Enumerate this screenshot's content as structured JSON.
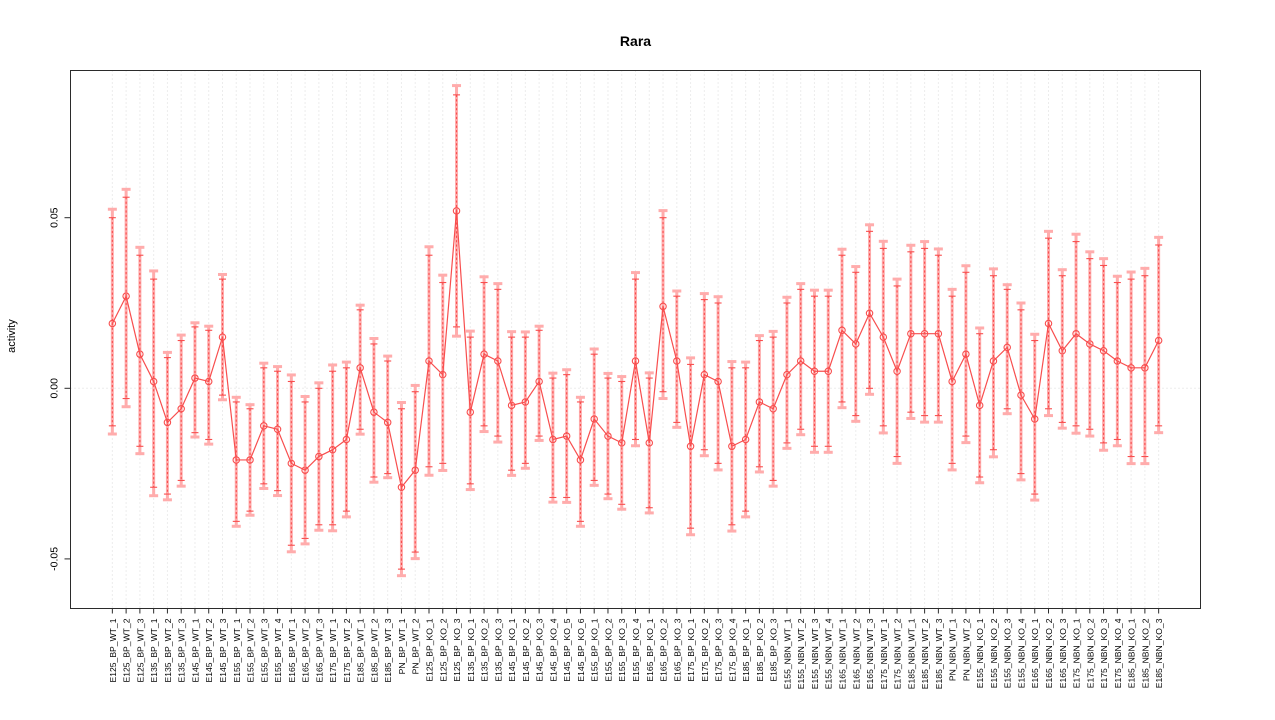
{
  "figure": {
    "title": "Rara",
    "ylabel": "activity",
    "xlabel": ""
  },
  "chart_data": {
    "type": "scatter",
    "subtype": "points-with-error-bars-connected-by-line",
    "title": "Rara",
    "xlabel": "",
    "ylabel": "activity",
    "ylim": [
      -0.0645,
      0.0931
    ],
    "y_ticks": [
      0.05,
      0,
      -0.05
    ],
    "grid": "dotted vertical line at every category; dotted horizontal line at y=0",
    "legend": "none",
    "point_color": "#f84e4e",
    "ci_band_color": "#ffacac",
    "grid_color": "#dadada",
    "axis_color": "#2b2b2b",
    "categories": [
      "E125_BP_WT_1",
      "E125_BP_WT_2",
      "E125_BP_WT_3",
      "E135_BP_WT_1",
      "E135_BP_WT_2",
      "E135_BP_WT_3",
      "E145_BP_WT_1",
      "E145_BP_WT_2",
      "E145_BP_WT_3",
      "E155_BP_WT_1",
      "E155_BP_WT_2",
      "E155_BP_WT_3",
      "E155_BP_WT_4",
      "E165_BP_WT_1",
      "E165_BP_WT_2",
      "E165_BP_WT_3",
      "E175_BP_WT_1",
      "E175_BP_WT_2",
      "E185_BP_WT_1",
      "E185_BP_WT_2",
      "E185_BP_WT_3",
      "PN_BP_WT_1",
      "PN_BP_WT_2",
      "E125_BP_KO_1",
      "E125_BP_KO_2",
      "E125_BP_KO_3",
      "E135_BP_KO_1",
      "E135_BP_KO_2",
      "E135_BP_KO_3",
      "E145_BP_KO_1",
      "E145_BP_KO_2",
      "E145_BP_KO_3",
      "E145_BP_KO_4",
      "E145_BP_KO_5",
      "E145_BP_KO_6",
      "E155_BP_KO_1",
      "E155_BP_KO_2",
      "E155_BP_KO_3",
      "E155_BP_KO_4",
      "E165_BP_KO_1",
      "E165_BP_KO_2",
      "E165_BP_KO_3",
      "E175_BP_KO_1",
      "E175_BP_KO_2",
      "E175_BP_KO_3",
      "E175_BP_KO_4",
      "E185_BP_KO_1",
      "E185_BP_KO_2",
      "E185_BP_KO_3",
      "E155_NBN_WT_1",
      "E155_NBN_WT_2",
      "E155_NBN_WT_3",
      "E155_NBN_WT_4",
      "E165_NBN_WT_1",
      "E165_NBN_WT_2",
      "E165_NBN_WT_3",
      "E175_NBN_WT_1",
      "E175_NBN_WT_2",
      "E185_NBN_WT_1",
      "E185_NBN_WT_2",
      "E185_NBN_WT_3",
      "PN_NBN_WT_1",
      "PN_NBN_WT_2",
      "E155_NBN_KO_1",
      "E155_NBN_KO_2",
      "E155_NBN_KO_3",
      "E155_NBN_KO_4",
      "E165_NBN_KO_1",
      "E165_NBN_KO_2",
      "E165_NBN_KO_3",
      "E175_NBN_KO_1",
      "E175_NBN_KO_2",
      "E175_NBN_KO_3",
      "E175_NBN_KO_4",
      "E185_NBN_KO_1",
      "E185_NBN_KO_2",
      "E185_NBN_KO_3"
    ],
    "values": [
      0.019,
      0.027,
      0.01,
      0.002,
      -0.01,
      -0.006,
      0.003,
      0.002,
      0.015,
      -0.021,
      -0.021,
      -0.011,
      -0.012,
      -0.022,
      -0.024,
      -0.02,
      -0.018,
      -0.015,
      0.006,
      -0.007,
      -0.01,
      -0.029,
      -0.024,
      0.008,
      0.004,
      0.052,
      -0.007,
      0.01,
      0.008,
      -0.005,
      -0.004,
      0.002,
      -0.015,
      -0.014,
      -0.021,
      -0.009,
      -0.014,
      -0.016,
      0.008,
      -0.016,
      0.024,
      0.008,
      -0.017,
      0.004,
      0.002,
      -0.017,
      -0.015,
      -0.004,
      -0.006,
      0.004,
      0.008,
      0.005,
      0.005,
      0.017,
      0.013,
      0.022,
      0.015,
      0.005,
      0.016,
      0.016,
      0.016,
      0.002,
      0.01,
      -0.005,
      0.008,
      0.012,
      -0.002,
      -0.009,
      0.019,
      0.011,
      0.016,
      0.013,
      0.011,
      0.008,
      0.006,
      0.006,
      0.014
    ],
    "ci_low": [
      -0.011,
      -0.003,
      -0.017,
      -0.029,
      -0.031,
      -0.027,
      -0.013,
      -0.015,
      -0.002,
      -0.039,
      -0.036,
      -0.028,
      -0.03,
      -0.046,
      -0.044,
      -0.04,
      -0.04,
      -0.036,
      -0.012,
      -0.026,
      -0.025,
      -0.053,
      -0.048,
      -0.023,
      -0.022,
      0.018,
      -0.028,
      -0.011,
      -0.014,
      -0.024,
      -0.022,
      -0.014,
      -0.032,
      -0.032,
      -0.039,
      -0.027,
      -0.031,
      -0.034,
      -0.015,
      -0.035,
      -0.001,
      -0.01,
      -0.041,
      -0.018,
      -0.022,
      -0.04,
      -0.036,
      -0.023,
      -0.027,
      -0.016,
      -0.012,
      -0.017,
      -0.017,
      -0.004,
      -0.008,
      0.0,
      -0.011,
      -0.02,
      -0.007,
      -0.008,
      -0.008,
      -0.022,
      -0.014,
      -0.026,
      -0.018,
      -0.006,
      -0.025,
      -0.031,
      -0.006,
      -0.01,
      -0.011,
      -0.012,
      -0.016,
      -0.015,
      -0.02,
      -0.02,
      -0.011
    ],
    "ci_high": [
      0.05,
      0.056,
      0.039,
      0.032,
      0.009,
      0.014,
      0.018,
      0.017,
      0.032,
      -0.004,
      -0.006,
      0.006,
      0.005,
      0.002,
      -0.004,
      0.0,
      0.005,
      0.006,
      0.023,
      0.013,
      0.008,
      -0.006,
      -0.001,
      0.039,
      0.031,
      0.086,
      0.015,
      0.031,
      0.029,
      0.015,
      0.015,
      0.017,
      0.003,
      0.004,
      -0.004,
      0.01,
      0.003,
      0.002,
      0.032,
      0.003,
      0.05,
      0.027,
      0.007,
      0.026,
      0.025,
      0.006,
      0.006,
      0.014,
      0.015,
      0.025,
      0.029,
      0.027,
      0.027,
      0.039,
      0.034,
      0.046,
      0.041,
      0.03,
      0.04,
      0.041,
      0.039,
      0.027,
      0.034,
      0.016,
      0.033,
      0.029,
      0.023,
      0.014,
      0.044,
      0.033,
      0.043,
      0.038,
      0.036,
      0.031,
      0.032,
      0.033,
      0.042
    ]
  }
}
